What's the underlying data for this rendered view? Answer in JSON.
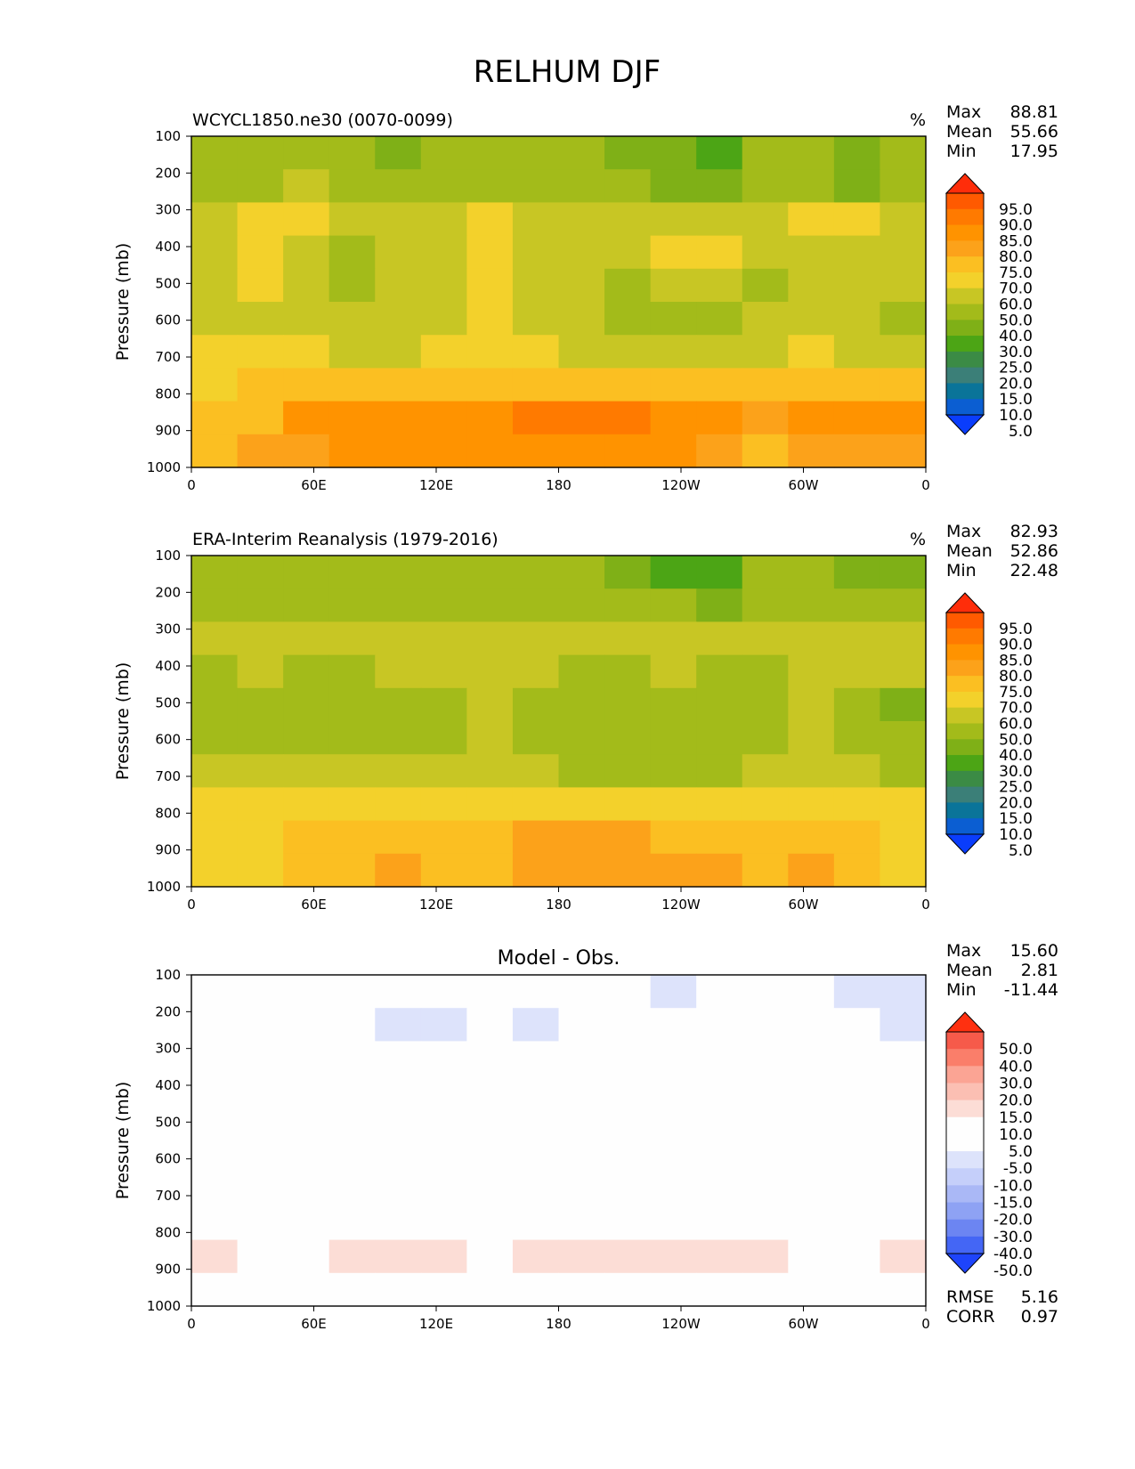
{
  "figure": {
    "title": "RELHUM DJF"
  },
  "chart_data": [
    {
      "type": "heatmap",
      "title": "WCYCL1850.ne30 (0070-0099)",
      "units": "%",
      "ylabel": "Pressure (mb)",
      "xlabel": "",
      "ylim": [
        1000,
        100
      ],
      "xlim": [
        0,
        360
      ],
      "xticks": [
        "0",
        "60E",
        "120E",
        "180",
        "120W",
        "60W",
        "0"
      ],
      "yticks": [
        "100",
        "200",
        "300",
        "400",
        "500",
        "600",
        "700",
        "800",
        "900",
        "1000"
      ],
      "stats": [
        {
          "label": "Max",
          "value": "88.81"
        },
        {
          "label": "Mean",
          "value": "55.66"
        },
        {
          "label": "Min",
          "value": "17.95"
        }
      ],
      "colorbar": {
        "levels": [
          "95.0",
          "90.0",
          "85.0",
          "80.0",
          "75.0",
          "70.0",
          "60.0",
          "50.0",
          "40.0",
          "30.0",
          "25.0",
          "20.0",
          "15.0",
          "10.0",
          "5.0"
        ],
        "colors": [
          "#ff2d0a",
          "#ff5a00",
          "#ff7a00",
          "#ff9300",
          "#fca21a",
          "#fbbf22",
          "#f3d12b",
          "#c8c624",
          "#a3bb1a",
          "#7fb017",
          "#4ca515",
          "#3b8b45",
          "#3b7f78",
          "#0a7499",
          "#0b5ed2",
          "#0a3dfc"
        ]
      },
      "field": [
        [
          42,
          45,
          48,
          40,
          38,
          45,
          44,
          42,
          40,
          36,
          30,
          28,
          40,
          44,
          32,
          42
        ],
        [
          46,
          48,
          50,
          48,
          44,
          46,
          48,
          46,
          44,
          40,
          36,
          34,
          44,
          46,
          38,
          44
        ],
        [
          58,
          60,
          62,
          58,
          54,
          58,
          62,
          58,
          52,
          50,
          52,
          50,
          52,
          60,
          62,
          58
        ],
        [
          58,
          62,
          52,
          48,
          50,
          56,
          62,
          56,
          50,
          50,
          62,
          60,
          50,
          58,
          58,
          56
        ],
        [
          58,
          60,
          50,
          48,
          50,
          54,
          62,
          58,
          50,
          48,
          52,
          50,
          48,
          56,
          52,
          50
        ],
        [
          56,
          58,
          54,
          50,
          50,
          56,
          62,
          58,
          52,
          48,
          46,
          46,
          50,
          56,
          52,
          48
        ],
        [
          60,
          62,
          60,
          58,
          56,
          60,
          68,
          64,
          56,
          54,
          52,
          52,
          56,
          64,
          58,
          54
        ],
        [
          68,
          70,
          70,
          70,
          70,
          70,
          72,
          72,
          70,
          70,
          72,
          72,
          70,
          70,
          70,
          70
        ],
        [
          72,
          74,
          80,
          82,
          80,
          82,
          84,
          86,
          88,
          86,
          84,
          82,
          78,
          82,
          84,
          80
        ],
        [
          74,
          76,
          78,
          80,
          80,
          80,
          82,
          84,
          84,
          82,
          80,
          78,
          74,
          76,
          78,
          78
        ]
      ]
    },
    {
      "type": "heatmap",
      "title": "ERA-Interim Reanalysis (1979-2016)",
      "units": "%",
      "ylabel": "Pressure (mb)",
      "xlabel": "",
      "ylim": [
        1000,
        100
      ],
      "xlim": [
        0,
        360
      ],
      "xticks": [
        "0",
        "60E",
        "120E",
        "180",
        "120W",
        "60W",
        "0"
      ],
      "yticks": [
        "100",
        "200",
        "300",
        "400",
        "500",
        "600",
        "700",
        "800",
        "900",
        "1000"
      ],
      "stats": [
        {
          "label": "Max",
          "value": "82.93"
        },
        {
          "label": "Mean",
          "value": "52.86"
        },
        {
          "label": "Min",
          "value": "22.48"
        }
      ],
      "colorbar": {
        "levels": [
          "95.0",
          "90.0",
          "85.0",
          "80.0",
          "75.0",
          "70.0",
          "60.0",
          "50.0",
          "40.0",
          "30.0",
          "25.0",
          "20.0",
          "15.0",
          "10.0",
          "5.0"
        ],
        "colors": [
          "#ff2d0a",
          "#ff5a00",
          "#ff7a00",
          "#ff9300",
          "#fca21a",
          "#fbbf22",
          "#f3d12b",
          "#c8c624",
          "#a3bb1a",
          "#7fb017",
          "#4ca515",
          "#3b8b45",
          "#3b7f78",
          "#0a7499",
          "#0b5ed2",
          "#0a3dfc"
        ]
      },
      "field": [
        [
          40,
          40,
          40,
          40,
          40,
          40,
          40,
          40,
          40,
          36,
          28,
          26,
          40,
          40,
          36,
          36
        ],
        [
          46,
          46,
          48,
          46,
          46,
          46,
          46,
          46,
          44,
          44,
          40,
          38,
          44,
          46,
          44,
          44
        ],
        [
          52,
          56,
          50,
          54,
          56,
          54,
          54,
          56,
          50,
          52,
          54,
          50,
          50,
          54,
          56,
          54
        ],
        [
          48,
          52,
          48,
          48,
          52,
          54,
          56,
          52,
          48,
          48,
          50,
          48,
          48,
          52,
          54,
          50
        ],
        [
          48,
          48,
          48,
          48,
          48,
          48,
          54,
          48,
          48,
          46,
          42,
          40,
          48,
          50,
          44,
          38
        ],
        [
          48,
          48,
          48,
          48,
          48,
          48,
          52,
          48,
          48,
          46,
          46,
          46,
          48,
          52,
          48,
          46
        ],
        [
          50,
          54,
          52,
          52,
          52,
          50,
          56,
          52,
          48,
          48,
          48,
          48,
          50,
          56,
          50,
          48
        ],
        [
          60,
          62,
          62,
          62,
          62,
          62,
          62,
          62,
          62,
          62,
          62,
          62,
          62,
          62,
          62,
          60
        ],
        [
          64,
          66,
          70,
          72,
          72,
          72,
          72,
          76,
          76,
          76,
          74,
          74,
          72,
          74,
          74,
          68
        ],
        [
          66,
          68,
          72,
          74,
          76,
          74,
          74,
          78,
          78,
          78,
          78,
          76,
          74,
          76,
          74,
          68
        ]
      ]
    },
    {
      "type": "heatmap",
      "title": "Model - Obs.",
      "units": "",
      "ylabel": "Pressure (mb)",
      "xlabel": "",
      "ylim": [
        1000,
        100
      ],
      "xlim": [
        0,
        360
      ],
      "xticks": [
        "0",
        "60E",
        "120E",
        "180",
        "120W",
        "60W",
        "0"
      ],
      "yticks": [
        "100",
        "200",
        "300",
        "400",
        "500",
        "600",
        "700",
        "800",
        "900",
        "1000"
      ],
      "stats": [
        {
          "label": "Max",
          "value": "15.60"
        },
        {
          "label": "Mean",
          "value": "2.81"
        },
        {
          "label": "Min",
          "value": "-11.44"
        }
      ],
      "footer_stats": [
        {
          "label": "RMSE",
          "value": "5.16"
        },
        {
          "label": "CORR",
          "value": "0.97"
        }
      ],
      "colorbar": {
        "levels": [
          "50.0",
          "40.0",
          "30.0",
          "20.0",
          "15.0",
          "10.0",
          "5.0",
          "-5.0",
          "-10.0",
          "-15.0",
          "-20.0",
          "-30.0",
          "-40.0",
          "-50.0"
        ],
        "colors": [
          "#ff3010",
          "#f65a4a",
          "#fa7e6a",
          "#fba494",
          "#fbbfb3",
          "#fcddd6",
          "#fefefe",
          "#fefefe",
          "#dde3fb",
          "#c5cffa",
          "#aab8f6",
          "#8ea2f4",
          "#6c85f2",
          "#4466f5",
          "#1e44fb"
        ]
      },
      "field": [
        [
          0,
          0,
          0,
          0,
          0,
          0,
          0,
          0,
          0,
          -3,
          -6,
          -5,
          0,
          -4,
          -6,
          -6
        ],
        [
          -2,
          0,
          0,
          0,
          -6,
          -10,
          0,
          -6,
          0,
          0,
          0,
          0,
          0,
          0,
          0,
          -6
        ],
        [
          0,
          0,
          8,
          0,
          0,
          0,
          0,
          0,
          0,
          0,
          0,
          0,
          0,
          0,
          7,
          0
        ],
        [
          0,
          7,
          8,
          7,
          0,
          0,
          0,
          0,
          0,
          0,
          0,
          7,
          0,
          0,
          8,
          6
        ],
        [
          6,
          8,
          6,
          8,
          0,
          0,
          7,
          8,
          0,
          0,
          0,
          8,
          0,
          0,
          8,
          8
        ],
        [
          0,
          8,
          6,
          8,
          6,
          0,
          8,
          8,
          0,
          0,
          0,
          8,
          0,
          7,
          0,
          0
        ],
        [
          0,
          6,
          0,
          7,
          0,
          0,
          8,
          8,
          0,
          0,
          0,
          8,
          7,
          8,
          0,
          0
        ],
        [
          6,
          6,
          6,
          7,
          8,
          7,
          8,
          8,
          8,
          8,
          8,
          9,
          7,
          6,
          6,
          7
        ],
        [
          12,
          6,
          7,
          12,
          12,
          12,
          8,
          12,
          12,
          12,
          12,
          12,
          12,
          0,
          8,
          12
        ],
        [
          7,
          0,
          6,
          0,
          7,
          7,
          7,
          7,
          0,
          0,
          6,
          0,
          0,
          0,
          7,
          6
        ]
      ]
    }
  ]
}
